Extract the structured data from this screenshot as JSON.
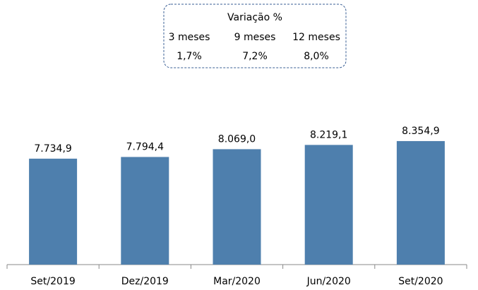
{
  "chart_data": {
    "type": "bar",
    "categories": [
      "Set/2019",
      "Dez/2019",
      "Mar/2020",
      "Jun/2020",
      "Set/2020"
    ],
    "values": [
      7734.9,
      7794.4,
      8069.0,
      8219.1,
      8354.9
    ],
    "value_labels": [
      "7.734,9",
      "7.794,4",
      "8.069,0",
      "8.219,1",
      "8.354,9"
    ],
    "color": "#4e7fad",
    "ylim": [
      4000,
      9000
    ],
    "annotation": {
      "title": "Variação %",
      "columns": [
        "3 meses",
        "9 meses",
        "12 meses"
      ],
      "values": [
        "1,7%",
        "7,2%",
        "8,0%"
      ]
    }
  }
}
